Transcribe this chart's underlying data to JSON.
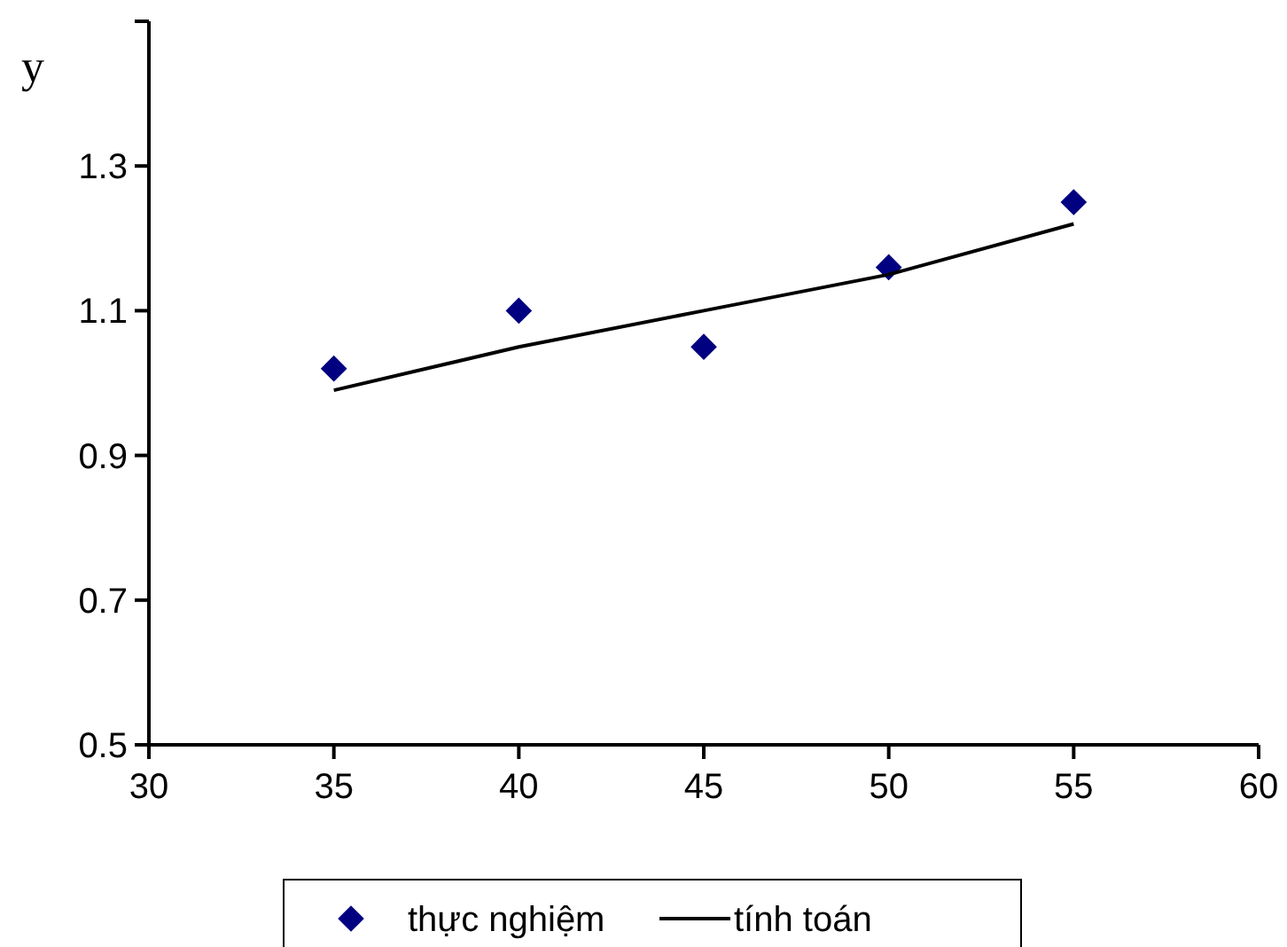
{
  "chart_data": {
    "type": "scatter",
    "ylabel": "y",
    "x": [
      35,
      40,
      45,
      50,
      55
    ],
    "series": [
      {
        "name": "thực nghiệm",
        "color": "#000080",
        "marker": "diamond",
        "values": [
          1.02,
          1.1,
          1.05,
          1.16,
          1.25
        ]
      },
      {
        "name": "tính toán",
        "type": "line",
        "color": "#000000",
        "marker": "none",
        "line_style": "solid",
        "values": [
          0.99,
          1.05,
          1.1,
          1.15,
          1.22
        ]
      }
    ],
    "xlim": [
      30,
      60
    ],
    "xticks": [
      30,
      35,
      40,
      45,
      50,
      55,
      60
    ],
    "ylim": [
      0.5,
      1.5
    ],
    "yticks": [
      0.5,
      0.7,
      0.9,
      1.1,
      1.3,
      {
        "value": 1.5,
        "label": null
      }
    ],
    "grid": false,
    "legend": "bottom"
  }
}
